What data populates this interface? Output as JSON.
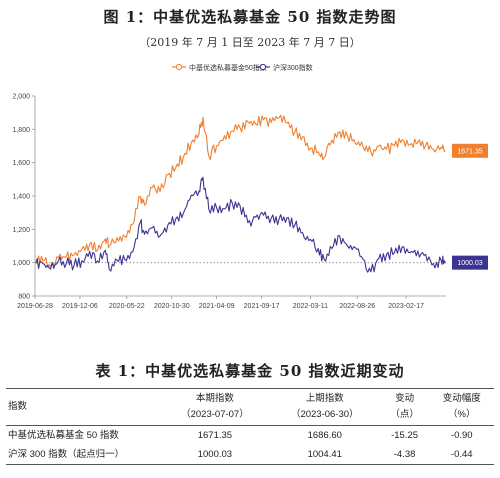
{
  "figure": {
    "title": "图 1：中基优选私募基金 50 指数走势图",
    "subtitle": "（2019 年 7 月 1 日至 2023 年 7 月 7 日）"
  },
  "chart_data": {
    "type": "line",
    "title": "图 1：中基优选私募基金 50 指数走势图",
    "subtitle": "（2019 年 7 月 1 日至 2023 年 7 月 7 日）",
    "x_tick_labels": [
      "2019-06-28",
      "2019-12-06",
      "2020-05-22",
      "2020-10-30",
      "2021-04-09",
      "2021-09-17",
      "2022-03-11",
      "2022-08-26",
      "2023-02-17"
    ],
    "y_ticks": [
      800,
      1000,
      1200,
      1400,
      1600,
      1800,
      2000
    ],
    "y_tick_labels": [
      "800",
      "1,000",
      "1,200",
      "1,400",
      "1,600",
      "1,800",
      "2,000"
    ],
    "ylim": [
      800,
      2000
    ],
    "reference_line": 1000,
    "legend_position": "top-center",
    "grid": false,
    "series": [
      {
        "name": "中基优选私募基金50指数",
        "color": "#f07f2f",
        "end_label": "1671.35",
        "points": [
          [
            "2019-07-01",
            1000
          ],
          [
            "2019-07-26",
            1012
          ],
          [
            "2019-08-23",
            975
          ],
          [
            "2019-09-20",
            1030
          ],
          [
            "2019-10-18",
            1035
          ],
          [
            "2019-11-15",
            1048
          ],
          [
            "2019-12-13",
            1082
          ],
          [
            "2020-01-10",
            1112
          ],
          [
            "2020-02-07",
            1075
          ],
          [
            "2020-03-06",
            1142
          ],
          [
            "2020-03-20",
            1100
          ],
          [
            "2020-04-17",
            1150
          ],
          [
            "2020-05-15",
            1158
          ],
          [
            "2020-06-12",
            1230
          ],
          [
            "2020-07-10",
            1395
          ],
          [
            "2020-07-24",
            1345
          ],
          [
            "2020-08-21",
            1450
          ],
          [
            "2020-09-18",
            1425
          ],
          [
            "2020-10-16",
            1528
          ],
          [
            "2020-11-13",
            1568
          ],
          [
            "2020-12-11",
            1635
          ],
          [
            "2021-01-08",
            1720
          ],
          [
            "2021-02-05",
            1775
          ],
          [
            "2021-02-19",
            1872
          ],
          [
            "2021-03-12",
            1640
          ],
          [
            "2021-04-09",
            1700
          ],
          [
            "2021-05-07",
            1762
          ],
          [
            "2021-06-04",
            1790
          ],
          [
            "2021-07-02",
            1810
          ],
          [
            "2021-07-30",
            1845
          ],
          [
            "2021-08-27",
            1832
          ],
          [
            "2021-09-24",
            1858
          ],
          [
            "2021-10-22",
            1842
          ],
          [
            "2021-11-19",
            1870
          ],
          [
            "2021-12-17",
            1838
          ],
          [
            "2022-01-14",
            1782
          ],
          [
            "2022-02-11",
            1755
          ],
          [
            "2022-03-11",
            1688
          ],
          [
            "2022-04-08",
            1665
          ],
          [
            "2022-04-29",
            1632
          ],
          [
            "2022-05-27",
            1735
          ],
          [
            "2022-06-24",
            1785
          ],
          [
            "2022-07-22",
            1760
          ],
          [
            "2022-08-19",
            1715
          ],
          [
            "2022-09-16",
            1695
          ],
          [
            "2022-10-14",
            1662
          ],
          [
            "2022-11-11",
            1700
          ],
          [
            "2022-12-09",
            1680
          ],
          [
            "2023-01-06",
            1702
          ],
          [
            "2023-02-03",
            1738
          ],
          [
            "2023-03-03",
            1708
          ],
          [
            "2023-03-31",
            1722
          ],
          [
            "2023-04-28",
            1705
          ],
          [
            "2023-05-26",
            1680
          ],
          [
            "2023-06-23",
            1692
          ],
          [
            "2023-07-07",
            1671.35
          ]
        ]
      },
      {
        "name": "沪深300指数",
        "color": "#3c3491",
        "end_label": "1000.03",
        "points": [
          [
            "2019-07-01",
            1000
          ],
          [
            "2019-07-26",
            995
          ],
          [
            "2019-08-23",
            962
          ],
          [
            "2019-09-20",
            1010
          ],
          [
            "2019-10-18",
            995
          ],
          [
            "2019-11-15",
            985
          ],
          [
            "2019-12-13",
            1012
          ],
          [
            "2020-01-10",
            1068
          ],
          [
            "2020-02-07",
            1010
          ],
          [
            "2020-03-06",
            1075
          ],
          [
            "2020-03-20",
            960
          ],
          [
            "2020-04-17",
            1015
          ],
          [
            "2020-05-15",
            1020
          ],
          [
            "2020-06-12",
            1065
          ],
          [
            "2020-07-10",
            1245
          ],
          [
            "2020-07-24",
            1170
          ],
          [
            "2020-08-21",
            1210
          ],
          [
            "2020-09-18",
            1160
          ],
          [
            "2020-10-16",
            1225
          ],
          [
            "2020-11-13",
            1262
          ],
          [
            "2020-12-11",
            1298
          ],
          [
            "2021-01-08",
            1405
          ],
          [
            "2021-02-05",
            1430
          ],
          [
            "2021-02-19",
            1512
          ],
          [
            "2021-03-12",
            1320
          ],
          [
            "2021-04-09",
            1330
          ],
          [
            "2021-05-07",
            1322
          ],
          [
            "2021-06-04",
            1358
          ],
          [
            "2021-07-02",
            1340
          ],
          [
            "2021-07-30",
            1240
          ],
          [
            "2021-08-27",
            1272
          ],
          [
            "2021-09-24",
            1285
          ],
          [
            "2021-10-22",
            1268
          ],
          [
            "2021-11-19",
            1262
          ],
          [
            "2021-12-17",
            1270
          ],
          [
            "2022-01-14",
            1225
          ],
          [
            "2022-02-11",
            1180
          ],
          [
            "2022-03-11",
            1140
          ],
          [
            "2022-04-08",
            1085
          ],
          [
            "2022-04-29",
            1020
          ],
          [
            "2022-05-27",
            1085
          ],
          [
            "2022-06-24",
            1160
          ],
          [
            "2022-07-22",
            1100
          ],
          [
            "2022-08-19",
            1090
          ],
          [
            "2022-09-16",
            1020
          ],
          [
            "2022-10-14",
            945
          ],
          [
            "2022-11-11",
            1025
          ],
          [
            "2022-12-09",
            1050
          ],
          [
            "2023-01-06",
            1060
          ],
          [
            "2023-02-03",
            1095
          ],
          [
            "2023-03-03",
            1060
          ],
          [
            "2023-03-31",
            1070
          ],
          [
            "2023-04-28",
            1050
          ],
          [
            "2023-05-26",
            995
          ],
          [
            "2023-06-23",
            1010
          ],
          [
            "2023-07-07",
            1000.03
          ]
        ]
      }
    ]
  },
  "table": {
    "title": "表 1：中基优选私募基金 50 指数近期变动",
    "headers": [
      {
        "main": "指数",
        "sub": ""
      },
      {
        "main": "本期指数",
        "sub": "（2023-07-07）"
      },
      {
        "main": "上期指数",
        "sub": "（2023-06-30）"
      },
      {
        "main": "变动",
        "sub": "（点）"
      },
      {
        "main": "变动幅度",
        "sub": "（%）"
      }
    ],
    "rows": [
      [
        "中基优选私募基金 50 指数",
        "1671.35",
        "1686.60",
        "-15.25",
        "-0.90"
      ],
      [
        "沪深 300 指数（起点归一）",
        "1000.03",
        "1004.41",
        "-4.38",
        "-0.44"
      ]
    ]
  }
}
